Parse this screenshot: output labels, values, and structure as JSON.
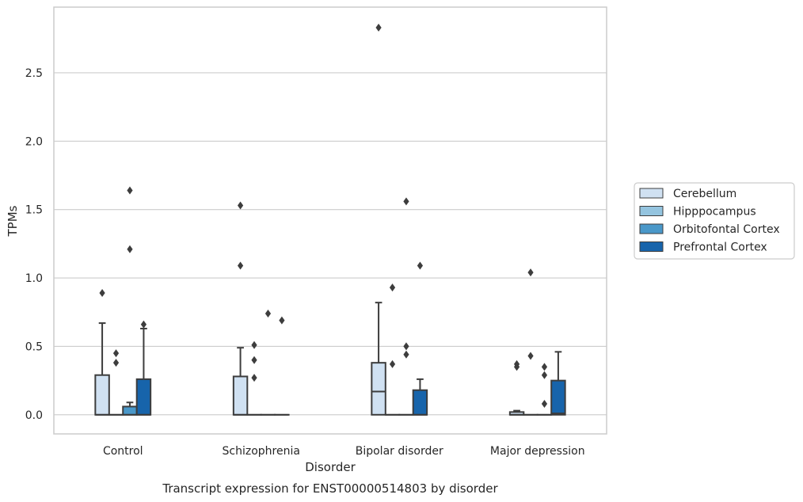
{
  "chart_data": {
    "type": "box",
    "xlabel": "Disorder",
    "ylabel": "TPMs",
    "caption": "Transcript expression for ENST00000514803 by disorder",
    "ylim": [
      -0.14,
      2.98
    ],
    "yticks": [
      0.0,
      0.5,
      1.0,
      1.5,
      2.0,
      2.5
    ],
    "ytick_labels": [
      "0.0",
      "0.5",
      "1.0",
      "1.5",
      "2.0",
      "2.5"
    ],
    "grid": "horizontal",
    "legend_position": "right",
    "categories": [
      "Control",
      "Schizophrenia",
      "Bipolar disorder",
      "Major depression"
    ],
    "series": [
      {
        "name": "Cerebellum",
        "color": "#d0e1f2",
        "boxes": [
          {
            "q1": 0.0,
            "median": 0.0,
            "q3": 0.29,
            "whisker_low": 0.0,
            "whisker_high": 0.67,
            "outliers": [
              0.89
            ]
          },
          {
            "q1": 0.0,
            "median": 0.0,
            "q3": 0.28,
            "whisker_low": 0.0,
            "whisker_high": 0.49,
            "outliers": [
              1.09,
              1.53
            ]
          },
          {
            "q1": 0.0,
            "median": 0.17,
            "q3": 0.38,
            "whisker_low": 0.0,
            "whisker_high": 0.82,
            "outliers": [
              2.83
            ]
          },
          {
            "q1": 0.0,
            "median": 0.0,
            "q3": 0.02,
            "whisker_low": 0.0,
            "whisker_high": 0.03,
            "outliers": [
              0.35,
              0.37
            ]
          }
        ]
      },
      {
        "name": "Hipppocampus",
        "color": "#94c4df",
        "boxes": [
          {
            "q1": 0.0,
            "median": 0.0,
            "q3": 0.0,
            "whisker_low": 0.0,
            "whisker_high": 0.0,
            "outliers": [
              0.38,
              0.45
            ]
          },
          {
            "q1": 0.0,
            "median": 0.0,
            "q3": 0.0,
            "whisker_low": 0.0,
            "whisker_high": 0.0,
            "outliers": [
              0.27,
              0.4,
              0.51
            ]
          },
          {
            "q1": 0.0,
            "median": 0.0,
            "q3": 0.0,
            "whisker_low": 0.0,
            "whisker_high": 0.0,
            "outliers": [
              0.37,
              0.93
            ]
          },
          {
            "q1": 0.0,
            "median": 0.0,
            "q3": 0.0,
            "whisker_low": 0.0,
            "whisker_high": 0.0,
            "outliers": [
              0.43,
              1.04
            ]
          }
        ]
      },
      {
        "name": "Orbitofontal Cortex",
        "color": "#4a98c9",
        "boxes": [
          {
            "q1": 0.0,
            "median": 0.0,
            "q3": 0.06,
            "whisker_low": 0.0,
            "whisker_high": 0.09,
            "outliers": [
              1.21,
              1.64
            ]
          },
          {
            "q1": 0.0,
            "median": 0.0,
            "q3": 0.0,
            "whisker_low": 0.0,
            "whisker_high": 0.0,
            "outliers": [
              0.74
            ]
          },
          {
            "q1": 0.0,
            "median": 0.0,
            "q3": 0.0,
            "whisker_low": 0.0,
            "whisker_high": 0.0,
            "outliers": [
              0.44,
              0.5,
              1.56
            ]
          },
          {
            "q1": 0.0,
            "median": 0.0,
            "q3": 0.0,
            "whisker_low": 0.0,
            "whisker_high": 0.0,
            "outliers": [
              0.08,
              0.29,
              0.35
            ]
          }
        ]
      },
      {
        "name": "Prefrontal Cortex",
        "color": "#1764ab",
        "boxes": [
          {
            "q1": 0.0,
            "median": 0.0,
            "q3": 0.26,
            "whisker_low": 0.0,
            "whisker_high": 0.63,
            "outliers": [
              0.66
            ]
          },
          {
            "q1": 0.0,
            "median": 0.0,
            "q3": 0.0,
            "whisker_low": 0.0,
            "whisker_high": 0.0,
            "outliers": [
              0.69
            ]
          },
          {
            "q1": 0.0,
            "median": 0.0,
            "q3": 0.18,
            "whisker_low": 0.0,
            "whisker_high": 0.26,
            "outliers": [
              1.09
            ]
          },
          {
            "q1": 0.0,
            "median": 0.01,
            "q3": 0.25,
            "whisker_low": 0.0,
            "whisker_high": 0.46,
            "outliers": []
          }
        ]
      }
    ]
  }
}
